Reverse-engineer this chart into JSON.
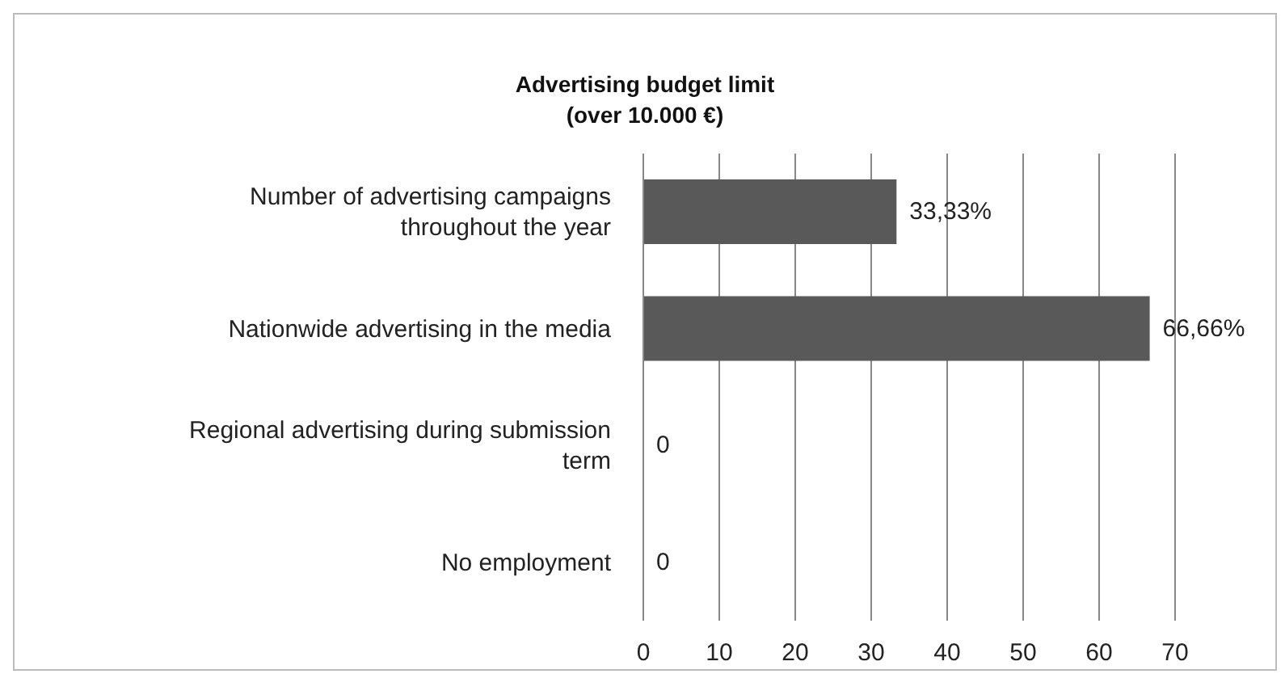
{
  "chart_data": {
    "type": "bar",
    "orientation": "horizontal",
    "title": "Advertising budget limit",
    "subtitle": "(over 10.000 €)",
    "categories": [
      "Number of advertising campaigns throughout the year",
      "Nationwide advertising in the media",
      "Regional advertising during submission term",
      "No employment"
    ],
    "values": [
      33.33,
      66.66,
      0,
      0
    ],
    "value_labels": [
      "33,33%",
      "66,66%",
      "0",
      "0"
    ],
    "color": "#595959",
    "xlim": [
      0,
      70
    ],
    "xticks": [
      0,
      10,
      20,
      30,
      40,
      50,
      60,
      70
    ],
    "grid": "x"
  }
}
